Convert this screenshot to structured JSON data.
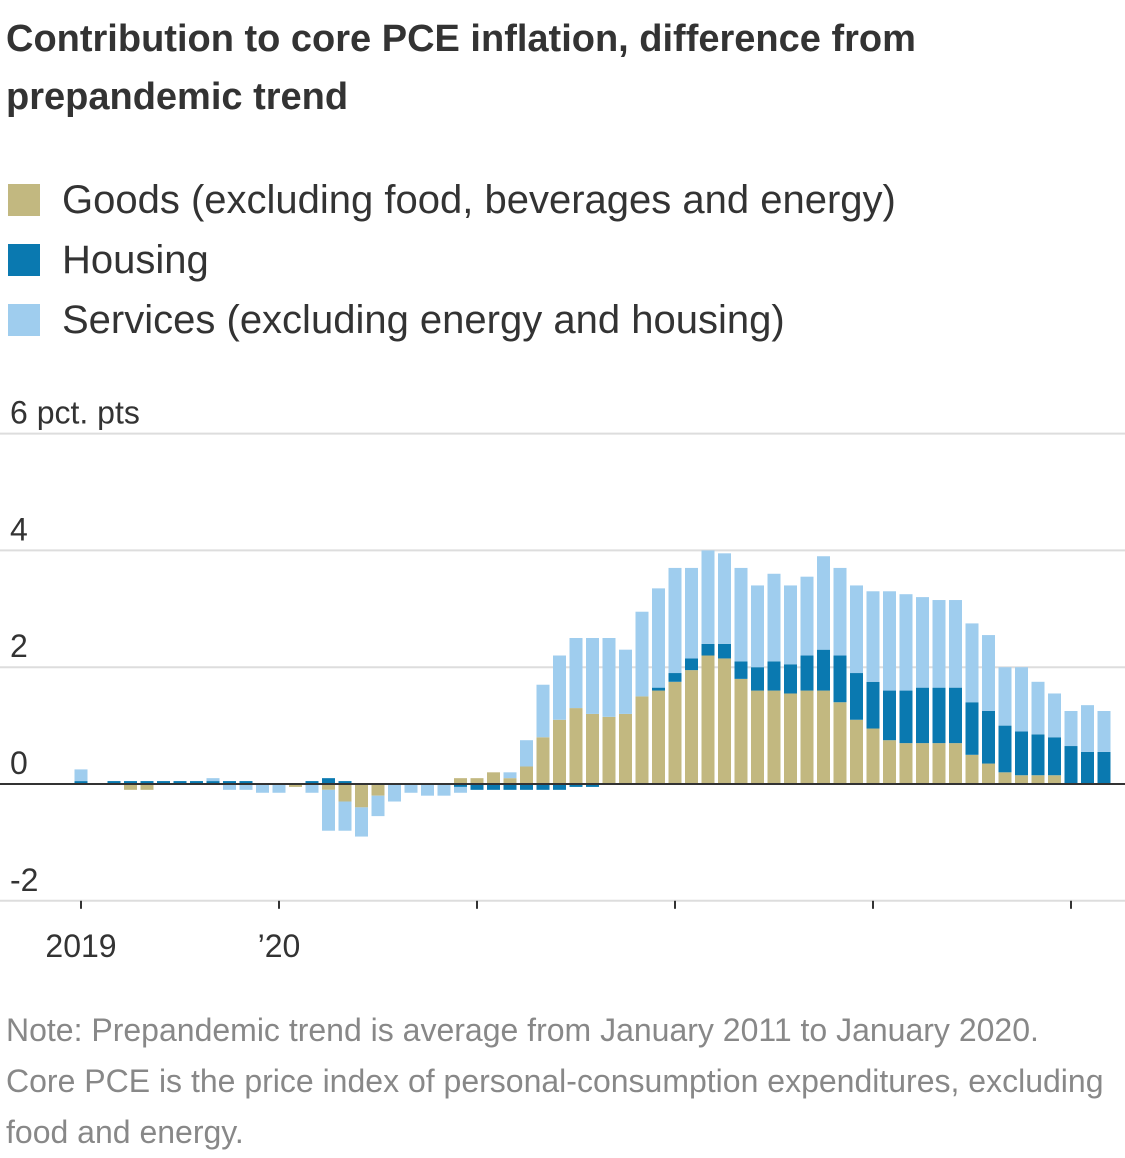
{
  "chart_data": {
    "type": "stacked-bar",
    "title": "Contribution to core PCE inflation, difference from prepandemic trend",
    "note": "Note: Prepandemic trend is average from January 2011 to January 2020. Core PCE is the price index of personal-consumption expenditures, excluding food and energy.",
    "categories": [
      "2019",
      null,
      null,
      null,
      null,
      null,
      null,
      null,
      null,
      null,
      null,
      null,
      "’20",
      null,
      null,
      null,
      null,
      null,
      null,
      null,
      null,
      null,
      null,
      null,
      null,
      null,
      null,
      null,
      null,
      null,
      null,
      null,
      null,
      null,
      null,
      null,
      null,
      null,
      null,
      null,
      null,
      null,
      null,
      null,
      null,
      null,
      null,
      null,
      null,
      null,
      null,
      null,
      null,
      null,
      null,
      null,
      null,
      null,
      null,
      null,
      null,
      null,
      null
    ],
    "series": [
      {
        "name": "Goods (excluding food, beverages and energy)",
        "color": "#c2b880",
        "values": [
          0,
          0,
          0,
          -0.1,
          -0.1,
          0,
          0,
          0,
          0,
          0,
          0,
          0,
          0,
          -0.05,
          0,
          -0.1,
          -0.3,
          -0.4,
          -0.2,
          0,
          0,
          0,
          0,
          0.1,
          0.1,
          0.2,
          0.1,
          0.3,
          0.8,
          1.1,
          1.3,
          1.2,
          1.15,
          1.2,
          1.5,
          1.6,
          1.75,
          1.95,
          2.2,
          2.15,
          1.8,
          1.6,
          1.6,
          1.55,
          1.6,
          1.6,
          1.4,
          1.1,
          0.95,
          0.75,
          0.7,
          0.7,
          0.7,
          0.7,
          0.5,
          0.35,
          0.2,
          0.15,
          0.15,
          0.15,
          0,
          0,
          0
        ]
      },
      {
        "name": "Housing",
        "color": "#0a79b0",
        "values": [
          0.05,
          0,
          0.05,
          0.05,
          0.05,
          0.05,
          0.05,
          0.05,
          0.05,
          0.05,
          0.05,
          0,
          0,
          0,
          0.05,
          0.1,
          0.05,
          0,
          0,
          0,
          0,
          0,
          0,
          -0.05,
          -0.1,
          -0.1,
          -0.1,
          -0.1,
          -0.1,
          -0.1,
          -0.05,
          -0.05,
          0,
          0,
          0,
          0.05,
          0.15,
          0.2,
          0.2,
          0.25,
          0.3,
          0.4,
          0.5,
          0.5,
          0.6,
          0.7,
          0.8,
          0.8,
          0.8,
          0.85,
          0.9,
          0.95,
          0.95,
          0.95,
          0.9,
          0.9,
          0.8,
          0.75,
          0.7,
          0.65,
          0.65,
          0.55,
          0.55
        ]
      },
      {
        "name": "Services (excluding energy and housing)",
        "color": "#9fcdee",
        "values": [
          0.2,
          0,
          0,
          0,
          0,
          0,
          0,
          0,
          0.05,
          -0.1,
          -0.1,
          -0.15,
          -0.15,
          0,
          -0.15,
          -0.7,
          -0.5,
          -0.5,
          -0.35,
          -0.3,
          -0.15,
          -0.2,
          -0.2,
          -0.1,
          0,
          0,
          0.1,
          0.45,
          0.9,
          1.1,
          1.2,
          1.3,
          1.35,
          1.1,
          1.45,
          1.7,
          1.8,
          1.55,
          1.6,
          1.55,
          1.6,
          1.4,
          1.5,
          1.35,
          1.35,
          1.6,
          1.5,
          1.5,
          1.55,
          1.7,
          1.65,
          1.55,
          1.5,
          1.5,
          1.35,
          1.3,
          1.0,
          1.1,
          0.9,
          0.75,
          0.6,
          0.8,
          0.7
        ]
      }
    ],
    "ylim": [
      -2,
      6
    ],
    "yticks": [
      -2,
      0,
      2,
      4,
      {
        "value": 6,
        "label": "6 pct. pts"
      }
    ],
    "grid": true
  }
}
